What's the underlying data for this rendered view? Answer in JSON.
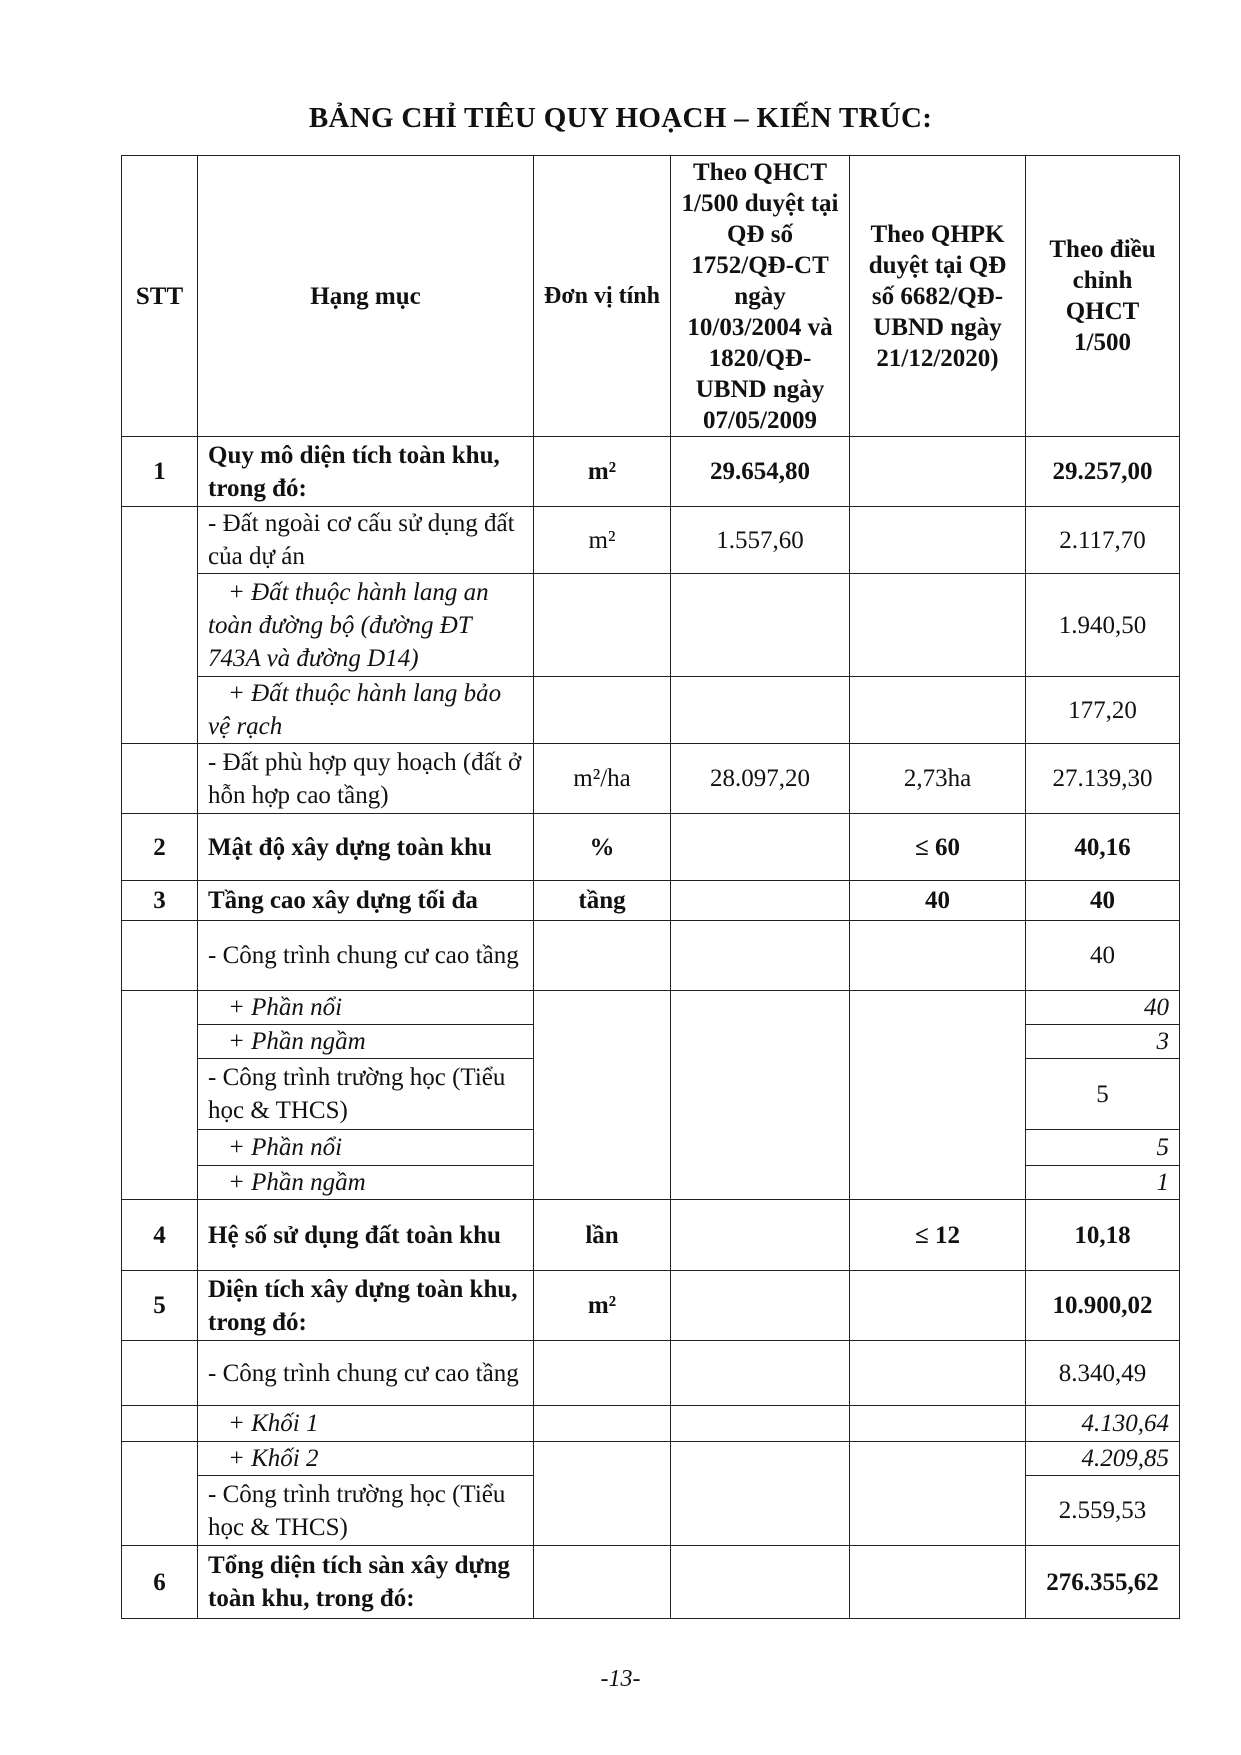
{
  "title": "BẢNG CHỈ TIÊU QUY HOẠCH – KIẾN TRÚC:",
  "headers": {
    "stt": "STT",
    "item": "Hạng mục",
    "unit": "Đơn vị tính",
    "qhct": "Theo QHCT 1/500 duyệt tại QĐ số 1752/QĐ-CT ngày 10/03/2004 và 1820/QĐ-UBND ngày 07/05/2009",
    "qhpk": "Theo QHPK duyệt tại QĐ số 6682/QĐ-UBND ngày 21/12/2020)",
    "adjusted": "Theo điều chỉnh QHCT 1/500"
  },
  "rows": [
    {
      "stt": "1",
      "item": "Quy mô diện tích toàn khu, trong đó:",
      "unit": "m²",
      "qhct": "29.654,80",
      "qhpk": "",
      "adjusted": "29.257,00",
      "style": "bold"
    },
    {
      "stt": "",
      "item": "- Đất ngoài cơ cấu sử dụng đất của dự án",
      "unit": "m²",
      "qhct": "1.557,60",
      "qhpk": "",
      "adjusted": "2.117,70",
      "style": "normal"
    },
    {
      "stt": "",
      "item": "+ Đất thuộc hành lang an toàn đường bộ (đường ĐT 743A và đường D14)",
      "unit": "",
      "qhct": "",
      "qhpk": "",
      "adjusted": "1.940,50",
      "style": "italic-item"
    },
    {
      "stt": "",
      "item": "+ Đất thuộc hành lang bảo vệ rạch",
      "unit": "",
      "qhct": "",
      "qhpk": "",
      "adjusted": "177,20",
      "style": "italic-item"
    },
    {
      "stt": "",
      "item": "- Đất phù hợp quy hoạch (đất ở hỗn hợp cao tầng)",
      "unit": "m²/ha",
      "qhct": "28.097,20",
      "qhpk": "2,73ha",
      "adjusted": "27.139,30",
      "style": "normal"
    },
    {
      "stt": "2",
      "item": "Mật độ xây dựng toàn khu",
      "unit": "%",
      "qhct": "",
      "qhpk": "≤ 60",
      "adjusted": "40,16",
      "style": "bold"
    },
    {
      "stt": "3",
      "item": "Tầng cao xây dựng tối đa",
      "unit": "tầng",
      "qhct": "",
      "qhpk": "40",
      "adjusted": "40",
      "style": "bold"
    },
    {
      "stt": "",
      "item": "- Công trình chung cư cao tầng",
      "unit": "",
      "qhct": "",
      "qhpk": "",
      "adjusted": "40",
      "style": "normal"
    },
    {
      "stt": "",
      "item": "+ Phần nổi",
      "unit": "",
      "qhct": "",
      "qhpk": "",
      "adjusted": "40",
      "style": "italic"
    },
    {
      "stt": "",
      "item": "+ Phần ngầm",
      "unit": "",
      "qhct": "",
      "qhpk": "",
      "adjusted": "3",
      "style": "italic"
    },
    {
      "stt": "",
      "item": "- Công trình trường học (Tiểu học & THCS)",
      "unit": "",
      "qhct": "",
      "qhpk": "",
      "adjusted": "5",
      "style": "normal"
    },
    {
      "stt": "",
      "item": "+ Phần nổi",
      "unit": "",
      "qhct": "",
      "qhpk": "",
      "adjusted": "5",
      "style": "italic"
    },
    {
      "stt": "",
      "item": "+ Phần ngầm",
      "unit": "",
      "qhct": "",
      "qhpk": "",
      "adjusted": "1",
      "style": "italic"
    },
    {
      "stt": "4",
      "item": "Hệ số sử dụng đất toàn khu",
      "unit": "lần",
      "qhct": "",
      "qhpk": "≤ 12",
      "adjusted": "10,18",
      "style": "bold"
    },
    {
      "stt": "5",
      "item": "Diện tích xây dựng toàn khu, trong đó:",
      "unit": "m²",
      "qhct": "",
      "qhpk": "",
      "adjusted": "10.900,02",
      "style": "bold"
    },
    {
      "stt": "",
      "item": "- Công trình chung cư cao tầng",
      "unit": "",
      "qhct": "",
      "qhpk": "",
      "adjusted": "8.340,49",
      "style": "normal"
    },
    {
      "stt": "",
      "item": "+ Khối 1",
      "unit": "",
      "qhct": "",
      "qhpk": "",
      "adjusted": "4.130,64",
      "style": "italic"
    },
    {
      "stt": "",
      "item": "+ Khối 2",
      "unit": "",
      "qhct": "",
      "qhpk": "",
      "adjusted": "4.209,85",
      "style": "italic"
    },
    {
      "stt": "",
      "item": "- Công trình trường học (Tiểu học & THCS)",
      "unit": "",
      "qhct": "",
      "qhpk": "",
      "adjusted": "2.559,53",
      "style": "normal"
    },
    {
      "stt": "6",
      "item": "Tổng diện tích sàn xây dựng toàn khu, trong đó:",
      "unit": "",
      "qhct": "",
      "qhpk": "",
      "adjusted": "276.355,62",
      "style": "bold"
    }
  ],
  "page_number": "-13-"
}
